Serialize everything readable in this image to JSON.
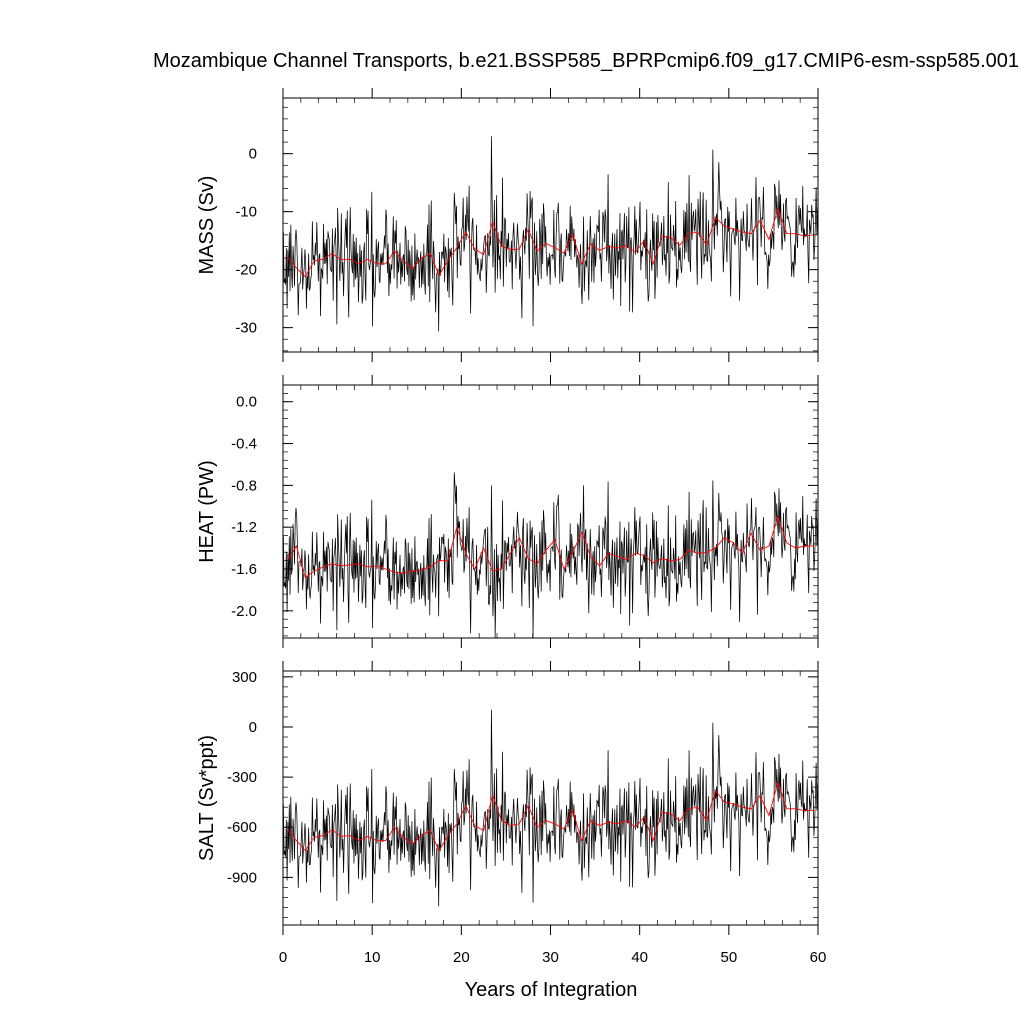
{
  "title": "Mozambique Channel Transports, b.e21.BSSP585_BPRPcmip6.f09_g17.CMIP6-esm-ssp585.001",
  "xlabel": "Years of Integration",
  "colors": {
    "monthly": "#000000",
    "annual": "#ff0000",
    "frame": "#000000"
  },
  "chart_data": [
    {
      "type": "line",
      "ylabel": "MASS (Sv)",
      "xlim": [
        0,
        60
      ],
      "ylim": [
        -34.2,
        9.6
      ],
      "yticks": [
        0,
        -10,
        -20,
        -30
      ],
      "ytick_labels": [
        "0",
        "-10",
        "-20",
        "-30"
      ],
      "xticks": [
        0,
        10,
        20,
        30,
        40,
        50,
        60
      ],
      "series": [
        {
          "values": [
            -17.8,
            -19.7,
            -21.2,
            -18.5,
            -18.2,
            -17.2,
            -18.3,
            -18.2,
            -19.0,
            -18.2,
            -19.0,
            -19.0,
            -16.8,
            -18.5,
            -19.8,
            -18.1,
            -17.2,
            -21.0,
            -18.4,
            -16.2,
            -13.5,
            -16.4,
            -17.4,
            -11.8,
            -16.0,
            -16.5,
            -16.5,
            -13.0,
            -16.8,
            -15.5,
            -16.2,
            -17.1,
            -14.0,
            -19.0,
            -15.5,
            -16.7,
            -16.0,
            -16.3,
            -15.8,
            -17.0,
            -15.0,
            -19.0,
            -14.2,
            -14.5,
            -15.8,
            -13.8,
            -13.5,
            -15.7,
            -11.0,
            -12.5,
            -13.0,
            -13.5,
            -13.8,
            -11.5,
            -14.8,
            -9.5,
            -13.8,
            -13.8,
            -14.2,
            -14.0
          ]
        }
      ]
    },
    {
      "type": "line",
      "ylabel": "HEAT (PW)",
      "xlim": [
        0,
        60
      ],
      "ylim": [
        -2.26,
        0.16
      ],
      "yticks": [
        0.0,
        -0.4,
        -0.8,
        -1.2,
        -1.6,
        -2.0
      ],
      "ytick_labels": [
        "0.0",
        "-0.4",
        "-0.8",
        "-1.2",
        "-1.6",
        "-2.0"
      ],
      "xticks": [
        0,
        10,
        20,
        30,
        40,
        50,
        60
      ],
      "series": [
        {
          "values": [
            -1.52,
            -1.38,
            -1.68,
            -1.62,
            -1.58,
            -1.55,
            -1.57,
            -1.56,
            -1.55,
            -1.58,
            -1.57,
            -1.6,
            -1.63,
            -1.64,
            -1.62,
            -1.61,
            -1.58,
            -1.52,
            -1.52,
            -1.2,
            -1.45,
            -1.6,
            -1.4,
            -1.62,
            -1.6,
            -1.45,
            -1.3,
            -1.5,
            -1.55,
            -1.42,
            -1.32,
            -1.6,
            -1.44,
            -1.25,
            -1.48,
            -1.57,
            -1.45,
            -1.48,
            -1.51,
            -1.45,
            -1.47,
            -1.54,
            -1.5,
            -1.52,
            -1.51,
            -1.42,
            -1.45,
            -1.44,
            -1.4,
            -1.3,
            -1.35,
            -1.45,
            -1.26,
            -1.42,
            -1.38,
            -1.1,
            -1.35,
            -1.4,
            -1.38,
            -1.38
          ]
        }
      ]
    },
    {
      "type": "line",
      "ylabel": "SALT (Sv*ppt)",
      "xlim": [
        0,
        60
      ],
      "ylim": [
        -1185,
        335
      ],
      "yticks": [
        300,
        0,
        -300,
        -600,
        -900
      ],
      "ytick_labels": [
        "300",
        "0",
        "-300",
        "-600",
        "-900"
      ],
      "xticks": [
        0,
        10,
        20,
        30,
        40,
        50,
        60
      ],
      "xtick_labels": [
        "0",
        "10",
        "20",
        "30",
        "40",
        "50",
        "60"
      ],
      "series": [
        {
          "values": [
            -610,
            -680,
            -740,
            -660,
            -650,
            -615,
            -655,
            -650,
            -680,
            -655,
            -680,
            -680,
            -600,
            -660,
            -700,
            -650,
            -620,
            -740,
            -650,
            -580,
            -470,
            -590,
            -620,
            -410,
            -560,
            -590,
            -580,
            -470,
            -600,
            -560,
            -580,
            -610,
            -500,
            -680,
            -560,
            -590,
            -570,
            -580,
            -560,
            -600,
            -540,
            -680,
            -510,
            -520,
            -560,
            -490,
            -480,
            -560,
            -380,
            -450,
            -460,
            -480,
            -490,
            -410,
            -530,
            -330,
            -490,
            -490,
            -500,
            -500
          ]
        }
      ]
    }
  ]
}
